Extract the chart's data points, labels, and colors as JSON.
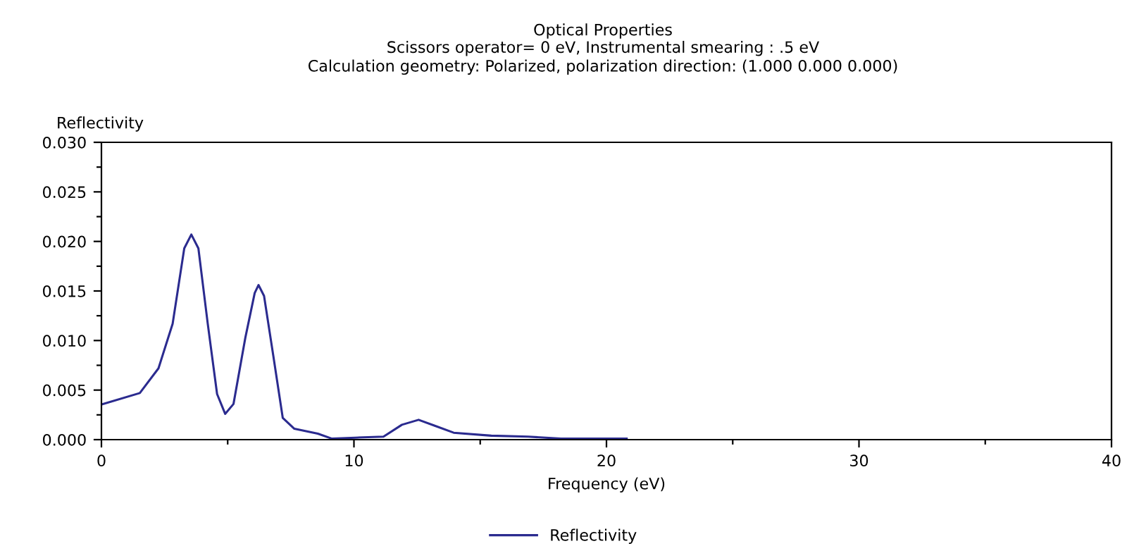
{
  "chart_data": {
    "type": "line",
    "title": "Optical Properties",
    "subtitle": "Scissors operator= 0 eV, Instrumental smearing : .5 eV\nCalculation geometry: Polarized, polarization direction: (1.000 0.000 0.000)",
    "xlabel": "Frequency (eV)",
    "ylabel": "Reflectivity",
    "xlim": [
      0,
      40
    ],
    "xticks": [
      0,
      {
        "value": 5,
        "label": null
      },
      10,
      {
        "value": 15,
        "label": null
      },
      20,
      {
        "value": 25,
        "label": null
      },
      30,
      {
        "value": 35,
        "label": null
      },
      40
    ],
    "ylim": [
      0,
      0.03
    ],
    "yticks": [
      {
        "value": 0,
        "label": "0.000"
      },
      {
        "value": 0.0025,
        "label": null
      },
      {
        "value": 0.005,
        "label": "0.005"
      },
      {
        "value": 0.0075,
        "label": null
      },
      {
        "value": 0.01,
        "label": "0.010"
      },
      {
        "value": 0.0125,
        "label": null
      },
      {
        "value": 0.015,
        "label": "0.015"
      },
      {
        "value": 0.0175,
        "label": null
      },
      {
        "value": 0.02,
        "label": "0.020"
      },
      {
        "value": 0.0225,
        "label": null
      },
      {
        "value": 0.025,
        "label": "0.025"
      },
      {
        "value": 0.0275,
        "label": null
      },
      {
        "value": 0.03,
        "label": "0.030"
      }
    ],
    "grid": false,
    "legend": "bottom",
    "marker": "none",
    "line_style": "solid",
    "series": [
      {
        "name": "Reflectivity",
        "color": "#2b2b8f",
        "x": [
          0,
          1.52,
          2.26,
          2.82,
          3.28,
          3.56,
          3.84,
          4.21,
          4.58,
          4.9,
          5.23,
          5.7,
          6.07,
          6.22,
          6.44,
          6.81,
          7.18,
          7.64,
          8.57,
          9.13,
          10.06,
          11.17,
          11.9,
          12.56,
          13.2,
          13.95,
          15.44,
          16.9,
          18.2,
          20.8
        ],
        "values": [
          0.00355,
          0.0047,
          0.0072,
          0.0117,
          0.0193,
          0.0207,
          0.0193,
          0.0117,
          0.0046,
          0.0026,
          0.0036,
          0.0103,
          0.0148,
          0.0156,
          0.0145,
          0.0084,
          0.0022,
          0.0011,
          0.0006,
          0.0001,
          0.0002,
          0.0003,
          0.0015,
          0.002,
          0.0014,
          0.0007,
          0.0004,
          0.0003,
          0.0001,
          0.0001
        ]
      }
    ]
  }
}
